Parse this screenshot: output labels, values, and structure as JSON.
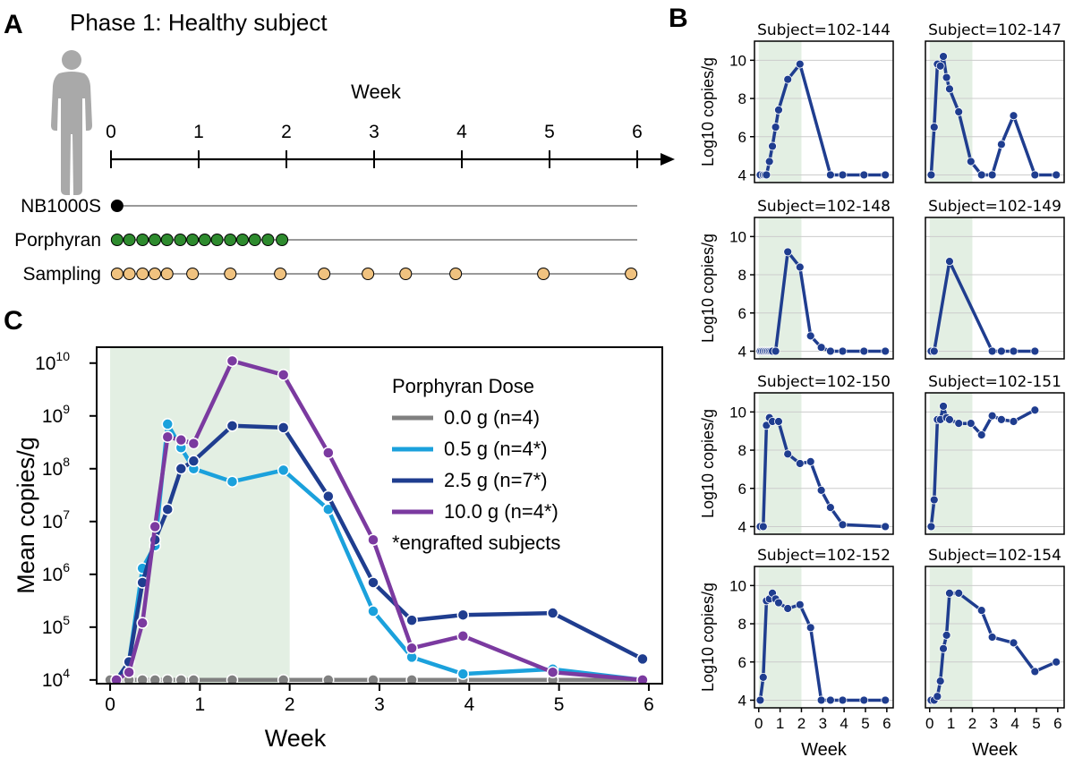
{
  "panels": {
    "a": {
      "letter": "A",
      "title": "Phase 1: Healthy subject"
    },
    "b": {
      "letter": "B"
    },
    "c": {
      "letter": "C"
    }
  },
  "timeline": {
    "axis_label": "Week",
    "ticks": [
      "0",
      "1",
      "2",
      "3",
      "4",
      "5",
      "6"
    ],
    "rows": [
      {
        "label": "NB1000S",
        "color": "#000000",
        "points": [
          0.07
        ],
        "line_end": 6
      },
      {
        "label": "Porphyran",
        "color": "#2e8b2e",
        "points": [
          0.07,
          0.21,
          0.36,
          0.5,
          0.64,
          0.79,
          0.93,
          1.07,
          1.21,
          1.36,
          1.5,
          1.64,
          1.79,
          1.95
        ],
        "line_end": 6
      },
      {
        "label": "Sampling",
        "color": "#f0c27f",
        "points": [
          0.07,
          0.21,
          0.36,
          0.5,
          0.64,
          0.93,
          1.36,
          1.93,
          2.43,
          2.93,
          3.36,
          3.93,
          4.93,
          5.93
        ],
        "line_end": 6
      }
    ]
  },
  "colors": {
    "line": "#1f3d8f",
    "shade": "#e3efe3",
    "gray": "#808080",
    "light_blue": "#1ba1dc",
    "dark_blue": "#1f3d8f",
    "purple": "#7b3aa0",
    "grid": "#cccccc"
  },
  "chart_data": [
    {
      "type": "line",
      "panel": "C",
      "xlabel": "Week",
      "ylabel": "Mean copies/g",
      "yscale": "log",
      "xlim": [
        -0.15,
        6.15
      ],
      "ylim": [
        8500,
        20000000000
      ],
      "x_ticks": [
        "0",
        "1",
        "2",
        "3",
        "4",
        "5",
        "6"
      ],
      "y_ticks": [
        {
          "exp": "4"
        },
        {
          "exp": "5"
        },
        {
          "exp": "6"
        },
        {
          "exp": "7"
        },
        {
          "exp": "8"
        },
        {
          "exp": "9"
        },
        {
          "exp": "10"
        }
      ],
      "shaded_region": [
        0,
        2
      ],
      "legend": {
        "title": "Porphyran Dose",
        "placement": "top-right",
        "footnote": "*engrafted subjects"
      },
      "series": [
        {
          "name": "0.0 g (n=4)",
          "color": "#808080",
          "x": [
            0,
            0.21,
            0.36,
            0.5,
            0.64,
            0.79,
            0.93,
            1.36,
            1.93,
            2.43,
            2.93,
            3.36,
            3.93,
            4.93,
            5.93
          ],
          "y": [
            10000,
            10000,
            10000,
            10000,
            10000,
            10000,
            10000,
            10000,
            10000,
            10000,
            10000,
            10000,
            10000,
            10000,
            10000
          ]
        },
        {
          "name": "0.5 g (n=4*)",
          "color": "#1ba1dc",
          "x": [
            0.07,
            0.21,
            0.36,
            0.5,
            0.64,
            0.79,
            0.93,
            1.36,
            1.93,
            2.43,
            2.93,
            3.36,
            3.93,
            4.93,
            5.93
          ],
          "y": [
            10000,
            22000,
            1300000,
            3500000,
            700000000,
            250000000,
            100000000,
            57000000,
            94000000,
            17000000,
            200000,
            27000,
            13000,
            16000,
            10000
          ]
        },
        {
          "name": "2.5 g (n=7*)",
          "color": "#1f3d8f",
          "x": [
            0.07,
            0.21,
            0.36,
            0.5,
            0.64,
            0.79,
            0.93,
            1.36,
            1.93,
            2.43,
            2.93,
            3.36,
            3.93,
            4.93,
            5.93
          ],
          "y": [
            10000,
            22000,
            700000,
            4500000,
            17000000,
            100000000,
            140000000,
            650000000,
            600000000,
            30000000,
            700000,
            135000,
            170000,
            185000,
            25000
          ]
        },
        {
          "name": "10.0 g (n=4*)",
          "color": "#7b3aa0",
          "x": [
            0.07,
            0.21,
            0.36,
            0.5,
            0.64,
            0.79,
            0.93,
            1.36,
            1.93,
            2.43,
            2.93,
            3.36,
            3.93,
            4.93,
            5.93
          ],
          "y": [
            10000,
            14000,
            120000,
            8000000,
            400000000,
            350000000,
            300000000,
            11000000000,
            6000000000,
            200000000,
            4500000,
            40000,
            68000,
            14000,
            10000
          ]
        }
      ]
    },
    {
      "type": "line",
      "panel": "B",
      "title": "Subject=102-144",
      "xlabel": "",
      "ylabel": "Log10 copies/g",
      "xlim": [
        -0.2,
        6.3
      ],
      "ylim": [
        3.6,
        11
      ],
      "x_ticks": [],
      "y_ticks": [
        "4",
        "6",
        "8",
        "10"
      ],
      "x": [
        0.07,
        0.21,
        0.29,
        0.36,
        0.5,
        0.64,
        0.79,
        0.93,
        1.36,
        1.93,
        3.36,
        3.93,
        4.93,
        5.93
      ],
      "y": [
        4,
        4,
        4,
        4,
        4.7,
        5.5,
        6.5,
        7.4,
        9,
        9.8,
        4,
        4,
        4,
        4
      ]
    },
    {
      "type": "line",
      "panel": "B",
      "title": "Subject=102-147",
      "xlabel": "",
      "ylabel": "",
      "xlim": [
        -0.2,
        6.3
      ],
      "ylim": [
        3.6,
        11
      ],
      "x_ticks": [],
      "y_ticks": [],
      "x": [
        0.07,
        0.21,
        0.36,
        0.5,
        0.64,
        0.79,
        0.93,
        1.36,
        1.93,
        2.43,
        2.93,
        3.36,
        3.93,
        4.93,
        5.93
      ],
      "y": [
        4,
        6.5,
        9.8,
        9.7,
        10.2,
        9.1,
        8.5,
        7.3,
        4.7,
        4,
        4,
        5.6,
        7.1,
        4,
        4
      ]
    },
    {
      "type": "line",
      "panel": "B",
      "title": "Subject=102-148",
      "xlabel": "",
      "ylabel": "Log10 copies/g",
      "xlim": [
        -0.2,
        6.3
      ],
      "ylim": [
        3.6,
        11
      ],
      "x_ticks": [],
      "y_ticks": [
        "4",
        "6",
        "8",
        "10"
      ],
      "x": [
        0.07,
        0.14,
        0.21,
        0.29,
        0.36,
        0.43,
        0.5,
        0.57,
        0.64,
        0.79,
        1.36,
        1.93,
        2.43,
        2.93,
        3.36,
        3.93,
        4.93,
        5.93
      ],
      "y": [
        4,
        4,
        4,
        4,
        4,
        4,
        4,
        4,
        4,
        4,
        9.2,
        8.4,
        4.8,
        4.2,
        4,
        4,
        4,
        4
      ]
    },
    {
      "type": "line",
      "panel": "B",
      "title": "Subject=102-149",
      "xlabel": "",
      "ylabel": "",
      "xlim": [
        -0.2,
        6.3
      ],
      "ylim": [
        3.6,
        11
      ],
      "x_ticks": [],
      "y_ticks": [],
      "x": [
        0.07,
        0.21,
        0.93,
        2.93,
        3.36,
        3.93,
        4.93
      ],
      "y": [
        4,
        4,
        8.7,
        4,
        4,
        4,
        4
      ]
    },
    {
      "type": "line",
      "panel": "B",
      "title": "Subject=102-150",
      "xlabel": "",
      "ylabel": "Log10 copies/g",
      "xlim": [
        -0.2,
        6.3
      ],
      "ylim": [
        3.6,
        11
      ],
      "x_ticks": [],
      "y_ticks": [
        "4",
        "6",
        "8",
        "10"
      ],
      "x": [
        0.07,
        0.21,
        0.36,
        0.5,
        0.64,
        0.93,
        1.36,
        1.93,
        2.43,
        2.93,
        3.36,
        3.93,
        5.93
      ],
      "y": [
        4,
        4,
        9.3,
        9.7,
        9.5,
        9.5,
        7.8,
        7.3,
        7.4,
        5.9,
        5,
        4.1,
        4
      ]
    },
    {
      "type": "line",
      "panel": "B",
      "title": "Subject=102-151",
      "xlabel": "",
      "ylabel": "",
      "xlim": [
        -0.2,
        6.3
      ],
      "ylim": [
        3.6,
        11
      ],
      "x_ticks": [],
      "y_ticks": [],
      "x": [
        0.07,
        0.21,
        0.36,
        0.5,
        0.64,
        0.79,
        0.93,
        1.36,
        1.93,
        2.43,
        2.93,
        3.36,
        3.93,
        4.93
      ],
      "y": [
        4,
        5.4,
        9.6,
        9.6,
        10.3,
        9.7,
        9.6,
        9.4,
        9.4,
        8.8,
        9.8,
        9.6,
        9.5,
        10.1
      ]
    },
    {
      "type": "line",
      "panel": "B",
      "title": "Subject=102-152",
      "xlabel": "Week",
      "ylabel": "Log10 copies/g",
      "xlim": [
        -0.2,
        6.3
      ],
      "ylim": [
        3.6,
        11
      ],
      "x_ticks": [
        "0",
        "1",
        "2",
        "3",
        "4",
        "5",
        "6"
      ],
      "y_ticks": [
        "4",
        "6",
        "8",
        "10"
      ],
      "x": [
        0.07,
        0.21,
        0.36,
        0.5,
        0.64,
        0.79,
        0.93,
        1.36,
        1.93,
        2.43,
        2.93,
        3.36,
        3.93,
        4.93,
        5.93
      ],
      "y": [
        4,
        5.2,
        9.2,
        9.3,
        9.6,
        9.3,
        9.1,
        8.8,
        9,
        7.8,
        4,
        4,
        4,
        4,
        4
      ]
    },
    {
      "type": "line",
      "panel": "B",
      "title": "Subject=102-154",
      "xlabel": "Week",
      "ylabel": "",
      "xlim": [
        -0.2,
        6.3
      ],
      "ylim": [
        3.6,
        11
      ],
      "x_ticks": [
        "0",
        "1",
        "2",
        "3",
        "4",
        "5",
        "6"
      ],
      "y_ticks": [],
      "x": [
        0.07,
        0.21,
        0.36,
        0.5,
        0.64,
        0.79,
        0.93,
        1.36,
        2.43,
        2.93,
        3.93,
        4.93,
        5.93
      ],
      "y": [
        4,
        4,
        4.2,
        5,
        6.7,
        7.4,
        9.6,
        9.6,
        8.7,
        7.3,
        7,
        5.5,
        6
      ]
    }
  ]
}
